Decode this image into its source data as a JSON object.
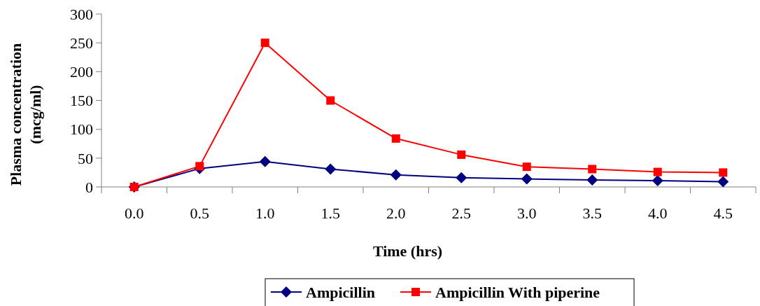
{
  "chart_data": {
    "type": "line",
    "xlabel": "Time (hrs)",
    "ylabel": "Plasma concentration (mcg/ml)",
    "categories": [
      "0.0",
      "0.5",
      "1.0",
      "1.5",
      "2.0",
      "2.5",
      "3.0",
      "3.5",
      "4.0",
      "4.5"
    ],
    "ylim": [
      0,
      300
    ],
    "yticks": [
      0,
      50,
      100,
      150,
      200,
      250,
      300
    ],
    "grid": false,
    "legend": "bottom",
    "series": [
      {
        "name": "Ampicillin",
        "color": "#000080",
        "marker": "diamond",
        "values": [
          0,
          32,
          44,
          31,
          21,
          16,
          14,
          12,
          11,
          9
        ]
      },
      {
        "name": "Ampicillin With piperine",
        "color": "#ff0000",
        "marker": "square",
        "values": [
          0,
          36,
          250,
          150,
          84,
          56,
          35,
          31,
          26,
          25
        ]
      }
    ]
  }
}
